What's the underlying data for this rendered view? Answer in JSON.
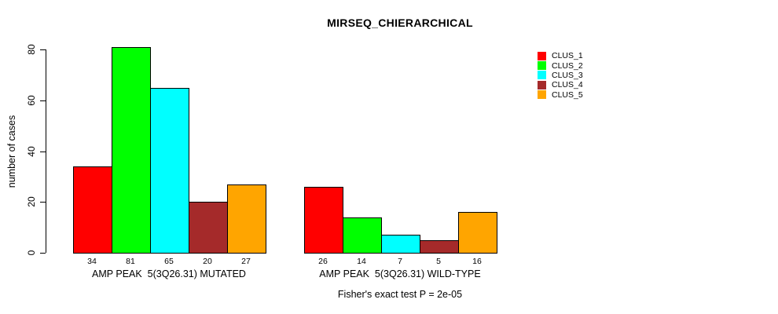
{
  "chart_data": {
    "type": "bar",
    "title": "MIRSEQ_CHIERARCHICAL",
    "ylabel": "number of cases",
    "ylim": [
      0,
      80
    ],
    "yticks": [
      0,
      20,
      40,
      60,
      80
    ],
    "grid": false,
    "legend_position": "top-right",
    "series": [
      {
        "name": "CLUS_1",
        "color": "#FF0000"
      },
      {
        "name": "CLUS_2",
        "color": "#00FF00"
      },
      {
        "name": "CLUS_3",
        "color": "#00FFFF"
      },
      {
        "name": "CLUS_4",
        "color": "#A52A2A"
      },
      {
        "name": "CLUS_5",
        "color": "#FFA500"
      }
    ],
    "groups": [
      {
        "label": "AMP PEAK  5(3Q26.31) MUTATED",
        "values": [
          34,
          81,
          65,
          20,
          27
        ]
      },
      {
        "label": "AMP PEAK  5(3Q26.31) WILD-TYPE",
        "values": [
          26,
          14,
          7,
          5,
          16
        ]
      }
    ],
    "annotation": "Fisher's exact test P = 2e-05"
  }
}
